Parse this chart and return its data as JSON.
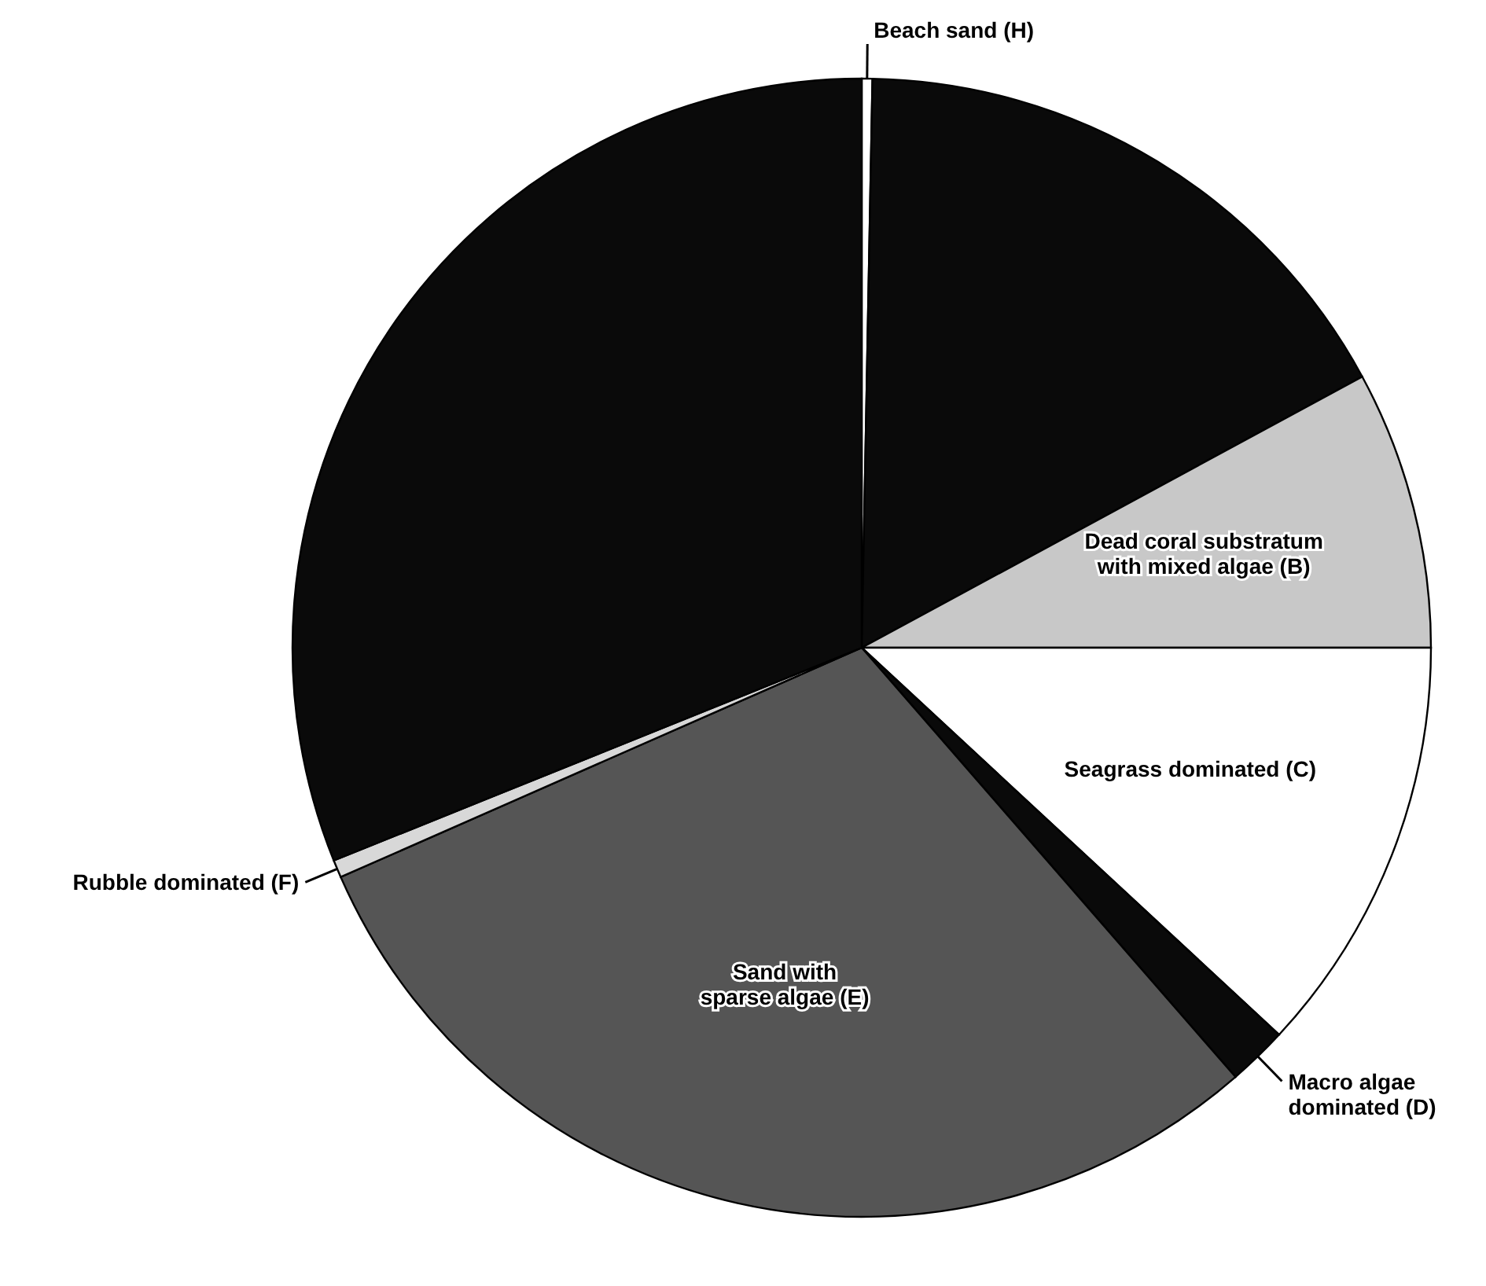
{
  "chart_data": {
    "type": "pie",
    "categories": [
      "Beach sand (H)",
      null,
      "Dead coral substratum with mixed algae (B)",
      "Seagrass dominated (C)",
      "Macro algae dominated (D)",
      "Sand with sparse algae (E)",
      "Rubble dominated (F)",
      null
    ],
    "values": [
      0.3,
      16.8,
      7.9,
      11.9,
      1.7,
      29.8,
      0.5,
      31.1
    ],
    "colors": [
      "#ffffff",
      "#0a0a0a",
      "#c8c8c8",
      "#ffffff",
      "#0a0a0a",
      "#555555",
      "#d8d8d8",
      "#0a0a0a"
    ]
  }
}
